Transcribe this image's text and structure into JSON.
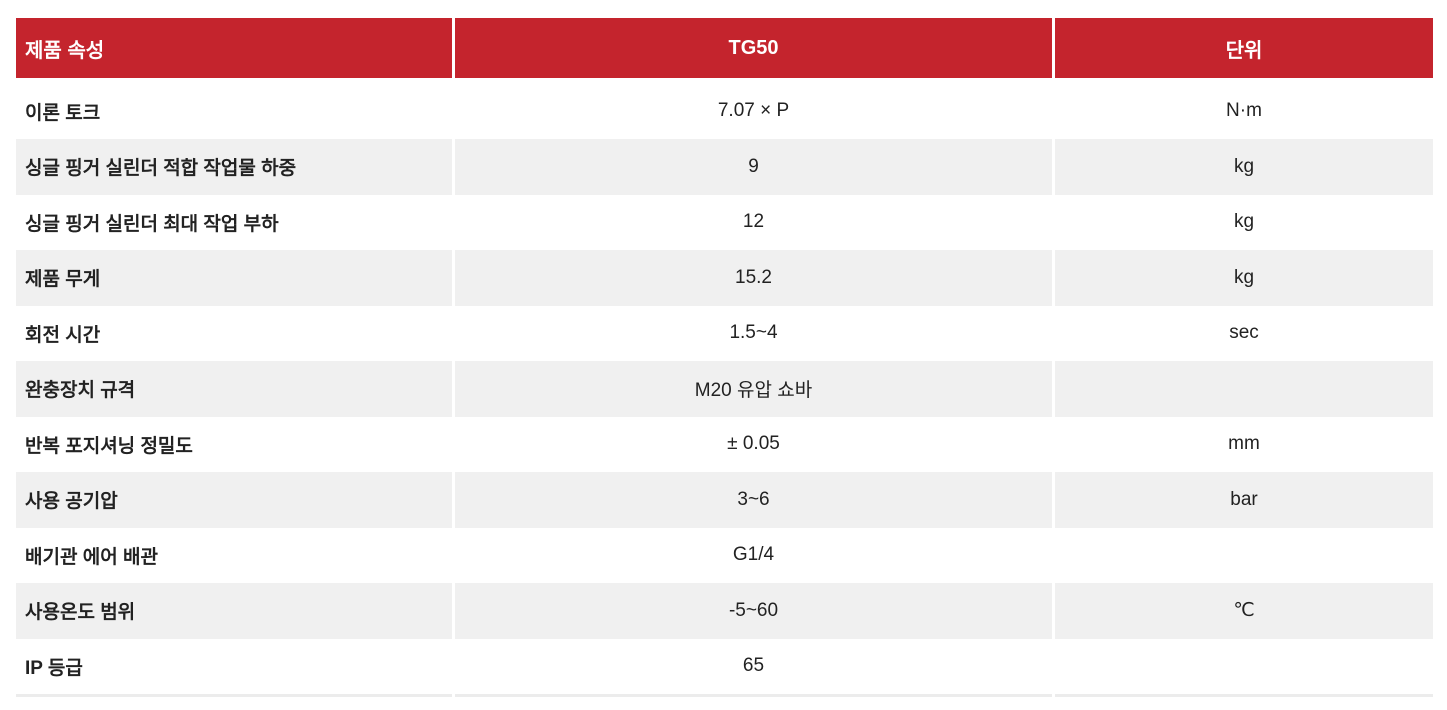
{
  "table": {
    "header": [
      "제품 속성",
      "TG50",
      "단위"
    ],
    "rows": [
      [
        "이론 토크",
        "7.07 × P",
        "N·m"
      ],
      [
        "싱글 핑거 실린더 적합 작업물 하중",
        "9",
        "kg"
      ],
      [
        "싱글 핑거 실린더 최대 작업 부하",
        "12",
        "kg"
      ],
      [
        "제품 무게",
        "15.2",
        "kg"
      ],
      [
        "회전 시간",
        "1.5~4",
        "sec"
      ],
      [
        "완충장치 규격",
        "M20 유압 쇼바",
        null
      ],
      [
        "반복 포지셔닝 정밀도",
        "± 0.05",
        "mm"
      ],
      [
        "사용 공기압",
        "3~6",
        "bar"
      ],
      [
        "배기관 에어 배관",
        "G1/4",
        null
      ],
      [
        "사용온도 범위",
        "-5~60",
        "℃"
      ],
      [
        "IP 등급",
        "65",
        null
      ]
    ]
  }
}
